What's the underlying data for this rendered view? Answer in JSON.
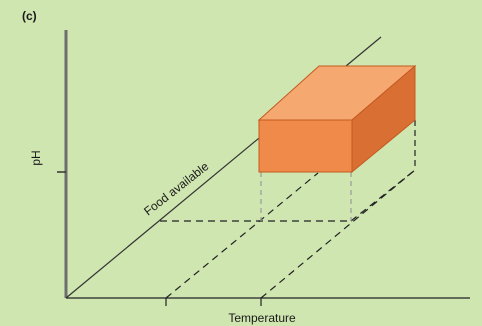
{
  "panel_label": "(c)",
  "axes": {
    "y_label": "pH",
    "x_label": "Temperature",
    "z_label": "Food available"
  },
  "colors": {
    "background": "#cfe6b0",
    "axis": "#6e6e6e",
    "axis_dark": "#333333",
    "dashed": "#222222",
    "dashed_light": "#9a9a9a",
    "box_front": "#ef8a4a",
    "box_top": "#f5a86f",
    "box_side": "#d96f32",
    "box_edge": "#c45a22"
  }
}
